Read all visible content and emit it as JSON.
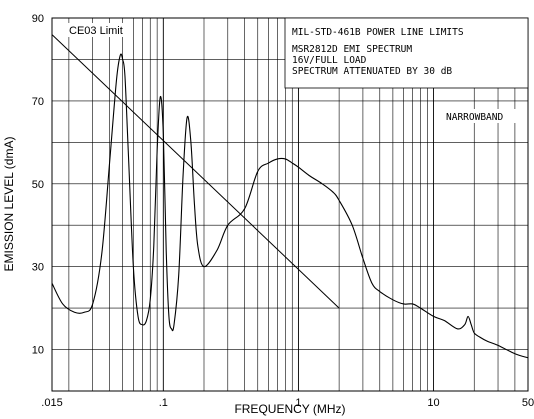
{
  "chart_data": {
    "type": "line",
    "xlabel": "FREQUENCY (MHz)",
    "ylabel": "EMISSION LEVEL (dmA)",
    "x_scale": "log",
    "xlim": [
      0.015,
      50
    ],
    "ylim": [
      0,
      90
    ],
    "grid": true,
    "x_tick_labels": [
      {
        "value": 0.015,
        "label": ".015"
      },
      {
        "value": 0.1,
        "label": ".1"
      },
      {
        "value": 1,
        "label": "1"
      },
      {
        "value": 10,
        "label": "10"
      },
      {
        "value": 50,
        "label": "50"
      }
    ],
    "y_tick_labels": [
      {
        "value": 10,
        "label": "10"
      },
      {
        "value": 30,
        "label": "30"
      },
      {
        "value": 50,
        "label": "50"
      },
      {
        "value": 70,
        "label": "70"
      },
      {
        "value": 90,
        "label": "90"
      }
    ],
    "info_box": [
      "MIL-STD-461B POWER LINE LIMITS",
      "MSR2812D EMI SPECTRUM",
      "16V/FULL LOAD",
      "SPECTRUM ATTENUATED BY 30 dB"
    ],
    "annotations": {
      "limit_label": "CE03 Limit",
      "narrowband_label": "NARROWBAND"
    },
    "series": [
      {
        "name": "CE03 Limit",
        "x": [
          0.015,
          2
        ],
        "y": [
          86,
          20
        ]
      },
      {
        "x": [
          0.015,
          0.018,
          0.022,
          0.026,
          0.03,
          0.035,
          0.04,
          0.045,
          0.048,
          0.05,
          0.052,
          0.055,
          0.06,
          0.065,
          0.07,
          0.075,
          0.08,
          0.085,
          0.09,
          0.095,
          0.1,
          0.105,
          0.11,
          0.115,
          0.12,
          0.13,
          0.14,
          0.15,
          0.16,
          0.17,
          0.18,
          0.2,
          0.25,
          0.3,
          0.4,
          0.5,
          0.6,
          0.7,
          0.8,
          0.9,
          1.0,
          1.2,
          1.5,
          1.8,
          2.0,
          2.5,
          3.0,
          3.5,
          4.0,
          5.0,
          6.0,
          7.0,
          8.0,
          10.0,
          12.0,
          15.0,
          17.0,
          18.0,
          19.0,
          20.0,
          22.0,
          25.0,
          30.0,
          40.0,
          50.0
        ],
        "y": [
          26,
          21,
          19,
          19,
          21,
          33,
          55,
          75,
          81,
          80,
          76,
          58,
          30,
          18,
          16,
          17,
          22,
          35,
          58,
          71,
          62,
          34,
          18,
          15,
          16,
          28,
          52,
          66,
          60,
          45,
          35,
          30,
          34,
          40,
          44,
          53,
          55,
          56,
          56,
          55,
          54,
          52,
          50,
          48,
          46,
          40,
          32,
          26,
          24,
          22,
          21,
          21,
          20,
          18,
          17,
          15,
          16,
          18,
          16,
          14,
          13,
          12,
          11,
          9,
          8
        ]
      }
    ]
  }
}
